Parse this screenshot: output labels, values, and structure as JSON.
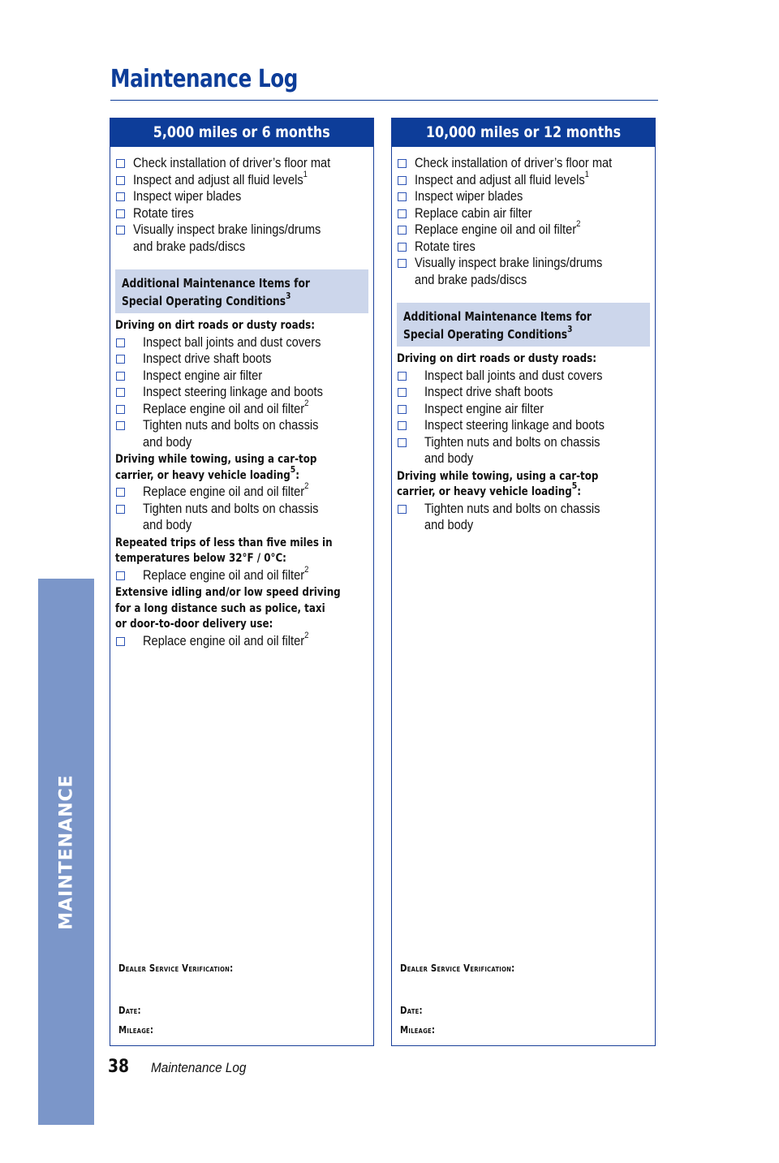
{
  "page": {
    "title": "Maintenance Log",
    "side_tab": "MAINTENANCE",
    "page_number": "38",
    "footer_label": "Maintenance Log"
  },
  "left": {
    "header": "5,000 miles or 6 months",
    "items": [
      {
        "text": "Check installation of driver’s floor mat"
      },
      {
        "text": "Inspect and adjust all fluid levels",
        "sup": "1"
      },
      {
        "text": "Inspect wiper blades"
      },
      {
        "text": "Rotate tires"
      },
      {
        "text": "Visually inspect brake linings/drums",
        "line2": "and brake pads/discs"
      }
    ],
    "special_line1": "Additional Maintenance Items for",
    "special_line2": "Special Operating Conditions",
    "special_sup": "3",
    "groups": [
      {
        "title_lines": [
          "Driving on dirt roads or dusty roads:"
        ],
        "items": [
          {
            "text": "Inspect ball joints and dust covers"
          },
          {
            "text": "Inspect drive shaft boots"
          },
          {
            "text": "Inspect engine air filter"
          },
          {
            "text": "Inspect steering linkage and boots"
          },
          {
            "text": "Replace engine oil and oil filter",
            "sup": "2"
          },
          {
            "text": "Tighten nuts and bolts on chassis",
            "line2": "and body"
          }
        ]
      },
      {
        "title_lines": [
          "Driving while towing, using a car-top",
          "carrier, or heavy vehicle loading"
        ],
        "title_sup": "5",
        "title_suffix": ":",
        "items": [
          {
            "text": "Replace engine oil and oil filter",
            "sup": "2"
          },
          {
            "text": "Tighten nuts and bolts on chassis",
            "line2": "and body"
          }
        ]
      },
      {
        "title_lines": [
          "Repeated trips of less than five miles in",
          "temperatures below 32°F / 0°C:"
        ],
        "items": [
          {
            "text": "Replace engine oil and oil filter",
            "sup": "2"
          }
        ]
      },
      {
        "title_lines": [
          "Extensive idling and/or low speed driving",
          "for a long distance such as police, taxi",
          "or door-to-door delivery use:"
        ],
        "items": [
          {
            "text": "Replace engine oil and oil filter",
            "sup": "2"
          }
        ]
      }
    ],
    "dealer_label": "Dealer Service Verification:",
    "date_label": "Date:",
    "mileage_label": "Mileage:"
  },
  "right": {
    "header": "10,000 miles or 12 months",
    "items": [
      {
        "text": "Check installation of driver’s floor mat"
      },
      {
        "text": "Inspect and adjust all fluid levels",
        "sup": "1"
      },
      {
        "text": "Inspect wiper blades"
      },
      {
        "text": "Replace cabin air filter"
      },
      {
        "text": "Replace engine oil and oil filter",
        "sup": "2"
      },
      {
        "text": "Rotate tires"
      },
      {
        "text": "Visually inspect brake linings/drums",
        "line2": "and brake pads/discs"
      }
    ],
    "special_line1": "Additional Maintenance Items for",
    "special_line2": "Special Operating Conditions",
    "special_sup": "3",
    "groups": [
      {
        "title_lines": [
          "Driving on dirt roads or dusty roads:"
        ],
        "items": [
          {
            "text": "Inspect ball joints and dust covers"
          },
          {
            "text": "Inspect drive shaft boots"
          },
          {
            "text": "Inspect engine air filter"
          },
          {
            "text": "Inspect steering linkage and boots"
          },
          {
            "text": "Tighten nuts and bolts on chassis",
            "line2": "and body"
          }
        ]
      },
      {
        "title_lines": [
          "Driving while towing, using a car-top",
          "carrier, or heavy vehicle loading"
        ],
        "title_sup": "5",
        "title_suffix": ":",
        "items": [
          {
            "text": "Tighten nuts and bolts on chassis",
            "line2": "and body"
          }
        ]
      }
    ],
    "dealer_label": "Dealer Service Verification:",
    "date_label": "Date:",
    "mileage_label": "Mileage:"
  }
}
